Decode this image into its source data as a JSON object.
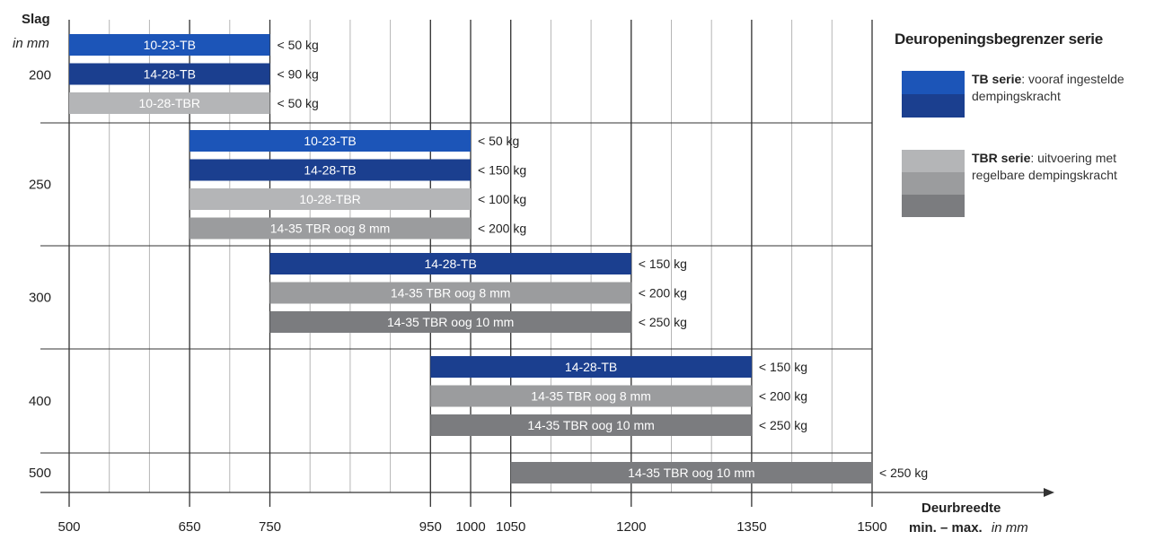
{
  "colors": {
    "tb_1": "#1c55b8",
    "tb_2": "#1b3f8f",
    "tbr_light": "#b4b5b7",
    "tbr_mid": "#9b9c9e",
    "tbr_dark": "#7b7c7f",
    "grid": "#b5b5b5",
    "axis": "#333333"
  },
  "chart_data": {
    "type": "bar",
    "orientation": "horizontal-range",
    "ylabel": "Slag",
    "ylabel_unit": "in mm",
    "xlabel": "Deurbreedte",
    "xlabel_line2": "min. – max.",
    "xlabel_unit": "in mm",
    "xlim": [
      500,
      1500
    ],
    "xticks": [
      500,
      650,
      750,
      950,
      1000,
      1050,
      1200,
      1350,
      1500
    ],
    "minor_grid_step": 50,
    "groups": [
      {
        "slag": "200",
        "bars": [
          {
            "label": "10-23-TB",
            "min": 500,
            "max": 750,
            "capacity": "< 50 kg",
            "color": "tb_1"
          },
          {
            "label": "14-28-TB",
            "min": 500,
            "max": 750,
            "capacity": "< 90 kg",
            "color": "tb_2"
          },
          {
            "label": "10-28-TBR",
            "min": 500,
            "max": 750,
            "capacity": "< 50 kg",
            "color": "tbr_light"
          }
        ]
      },
      {
        "slag": "250",
        "bars": [
          {
            "label": "10-23-TB",
            "min": 650,
            "max": 1000,
            "capacity": "< 50 kg",
            "color": "tb_1"
          },
          {
            "label": "14-28-TB",
            "min": 650,
            "max": 1000,
            "capacity": "< 150 kg",
            "color": "tb_2"
          },
          {
            "label": "10-28-TBR",
            "min": 650,
            "max": 1000,
            "capacity": "< 100 kg",
            "color": "tbr_light"
          },
          {
            "label": "14-35 TBR oog 8 mm",
            "min": 650,
            "max": 1000,
            "capacity": "< 200 kg",
            "color": "tbr_mid"
          }
        ]
      },
      {
        "slag": "300",
        "bars": [
          {
            "label": "14-28-TB",
            "min": 750,
            "max": 1200,
            "capacity": "< 150 kg",
            "color": "tb_2"
          },
          {
            "label": "14-35 TBR oog 8 mm",
            "min": 750,
            "max": 1200,
            "capacity": "< 200 kg",
            "color": "tbr_mid"
          },
          {
            "label": "14-35 TBR oog 10 mm",
            "min": 750,
            "max": 1200,
            "capacity": "< 250 kg",
            "color": "tbr_dark"
          }
        ]
      },
      {
        "slag": "400",
        "bars": [
          {
            "label": "14-28-TB",
            "min": 950,
            "max": 1350,
            "capacity": "< 150 kg",
            "color": "tb_2"
          },
          {
            "label": "14-35 TBR oog 8 mm",
            "min": 950,
            "max": 1350,
            "capacity": "< 200 kg",
            "color": "tbr_mid"
          },
          {
            "label": "14-35 TBR oog 10 mm",
            "min": 950,
            "max": 1350,
            "capacity": "< 250 kg",
            "color": "tbr_dark"
          }
        ]
      },
      {
        "slag": "500",
        "bars": [
          {
            "label": "14-35 TBR oog 10 mm",
            "min": 1050,
            "max": 1500,
            "capacity": "< 250 kg",
            "color": "tbr_dark"
          }
        ]
      }
    ]
  },
  "legend": {
    "title": "Deuropeningsbegrenzer serie",
    "tb": {
      "bold": "TB serie",
      "rest": ": vooraf ingestelde dempingskracht",
      "swatches": [
        "tb_1",
        "tb_2"
      ]
    },
    "tbr": {
      "bold": "TBR serie",
      "rest": ": uitvoering met regelbare dempingskracht",
      "swatches": [
        "tbr_light",
        "tbr_mid",
        "tbr_dark"
      ]
    }
  }
}
